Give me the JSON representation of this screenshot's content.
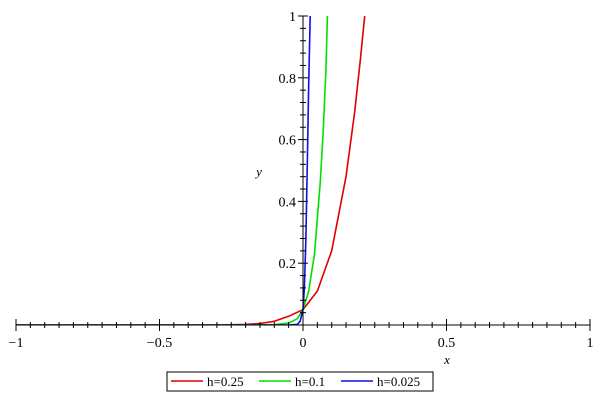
{
  "chart_data": {
    "type": "line",
    "xlabel": "x",
    "ylabel": "y",
    "xlim": [
      -1,
      1
    ],
    "ylim": [
      0,
      1
    ],
    "x_ticks": [
      {
        "value": -1,
        "label": "−1"
      },
      {
        "value": -0.5,
        "label": "−0.5"
      },
      {
        "value": 0,
        "label": "0"
      },
      {
        "value": 0.5,
        "label": "0.5"
      },
      {
        "value": 1,
        "label": "1"
      }
    ],
    "y_ticks": [
      {
        "value": 0.2,
        "label": "0.2"
      },
      {
        "value": 0.4,
        "label": "0.4"
      },
      {
        "value": 0.6,
        "label": "0.6"
      },
      {
        "value": 0.8,
        "label": "0.8"
      },
      {
        "value": 1,
        "label": "1"
      }
    ],
    "legend_position": "bottom-center",
    "grid": false,
    "series": [
      {
        "name": "h=0.25",
        "color": "#e00000",
        "x": [
          -1,
          -0.5,
          -0.3,
          -0.2,
          -0.15,
          -0.1,
          -0.05,
          0,
          0.05,
          0.1,
          0.15,
          0.18,
          0.2,
          0.215
        ],
        "y": [
          0.0,
          0.0,
          0.0,
          0.002,
          0.005,
          0.012,
          0.028,
          0.05,
          0.11,
          0.24,
          0.48,
          0.69,
          0.86,
          1.0
        ]
      },
      {
        "name": "h=0.1",
        "color": "#00e000",
        "x": [
          -1,
          -0.5,
          -0.2,
          -0.1,
          -0.05,
          -0.02,
          0,
          0.02,
          0.04,
          0.06,
          0.07,
          0.08,
          0.085
        ],
        "y": [
          0.0,
          0.0,
          0.0,
          0.001,
          0.006,
          0.02,
          0.05,
          0.11,
          0.23,
          0.46,
          0.62,
          0.83,
          1.0
        ]
      },
      {
        "name": "h=0.025",
        "color": "#1010e0",
        "x": [
          -1,
          -0.5,
          -0.05,
          -0.02,
          -0.01,
          0,
          0.005,
          0.01,
          0.015,
          0.02,
          0.025
        ],
        "y": [
          0.0,
          0.0,
          0.0,
          0.002,
          0.012,
          0.05,
          0.12,
          0.28,
          0.52,
          0.78,
          1.0
        ]
      }
    ]
  }
}
